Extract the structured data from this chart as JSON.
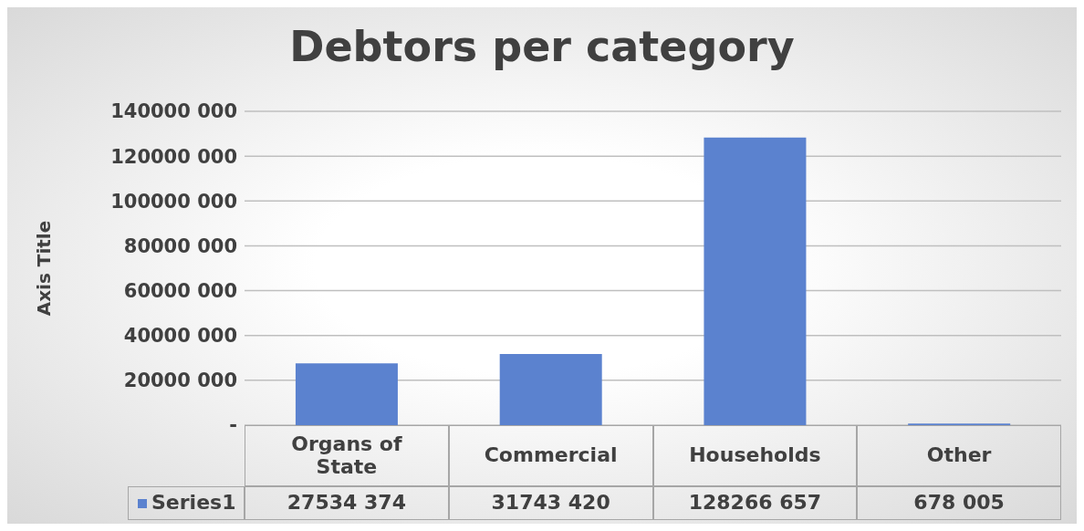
{
  "chart_data": {
    "type": "bar",
    "title": "Debtors per category",
    "ylabel": "Axis Title",
    "categories": [
      "Organs of State",
      "Commercial",
      "Households",
      "Other"
    ],
    "series": [
      {
        "name": "Series1",
        "color": "#5b82cf",
        "values": [
          27534374,
          31743420,
          128266657,
          678005
        ],
        "value_labels": [
          "27534 374",
          "31743 420",
          "128266 657",
          "678 005"
        ]
      }
    ],
    "ylim": [
      0,
      140000000
    ],
    "yticks": [
      {
        "value": 0,
        "label": "-"
      },
      {
        "value": 20000000,
        "label": "20000 000"
      },
      {
        "value": 40000000,
        "label": "40000 000"
      },
      {
        "value": 60000000,
        "label": "60000 000"
      },
      {
        "value": 80000000,
        "label": "80000 000"
      },
      {
        "value": 100000000,
        "label": "100000 000"
      },
      {
        "value": 120000000,
        "label": "120000 000"
      },
      {
        "value": 140000000,
        "label": "140000 000"
      }
    ],
    "grid": "y",
    "legend": "bottom"
  }
}
